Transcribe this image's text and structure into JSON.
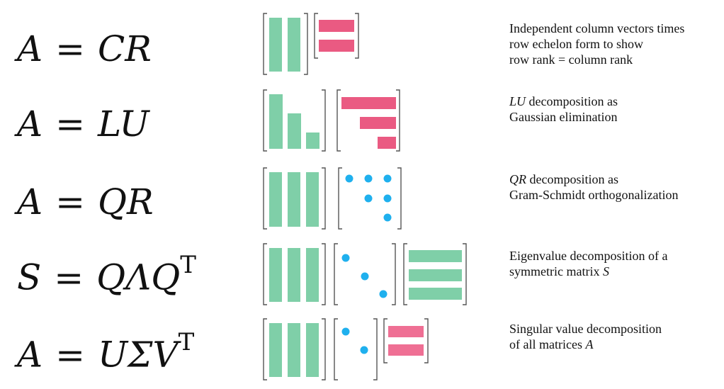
{
  "colors": {
    "green": "#7fcfa8",
    "pink": "#ea5a82",
    "pink_light": "#ef6f94",
    "blue": "#1fb0ee",
    "bracket": "#555555"
  },
  "rows": [
    {
      "id": "cr",
      "formula": {
        "lhs": "A",
        "eq": "=",
        "rhs": "CR",
        "sup": ""
      },
      "description": {
        "lines": [
          "Independent column vectors times",
          "row echelon form to show",
          "row rank = column rank"
        ]
      },
      "matrices": [
        "C",
        "R"
      ]
    },
    {
      "id": "lu",
      "formula": {
        "lhs": "A",
        "eq": "=",
        "rhs": "LU",
        "sup": ""
      },
      "description": {
        "lead_symbol": "LU",
        "lead_rest": " decomposition as",
        "lines": [
          "Gaussian elimination"
        ]
      },
      "matrices": [
        "L",
        "U"
      ]
    },
    {
      "id": "qr",
      "formula": {
        "lhs": "A",
        "eq": "=",
        "rhs": "QR",
        "sup": ""
      },
      "description": {
        "lead_symbol": "QR",
        "lead_rest": " decomposition as",
        "lines": [
          "Gram-Schmidt orthogonalization"
        ]
      },
      "matrices": [
        "Q",
        "R"
      ]
    },
    {
      "id": "eig",
      "formula": {
        "lhs": "S",
        "eq": "=",
        "rhs": "QΛQ",
        "sup": "T"
      },
      "description": {
        "lines": [
          "Eigenvalue decomposition of a"
        ],
        "tail_text": "symmetric matrix ",
        "tail_symbol": "S"
      },
      "matrices": [
        "Q",
        "Λ",
        "Qᵀ"
      ]
    },
    {
      "id": "svd",
      "formula": {
        "lhs": "A",
        "eq": "=",
        "rhs": "UΣV",
        "sup": "T"
      },
      "description": {
        "lines": [
          "Singular value decomposition"
        ],
        "tail_text": "of all matrices ",
        "tail_symbol": "A"
      },
      "matrices": [
        "U",
        "Σ",
        "Vᵀ"
      ]
    }
  ]
}
